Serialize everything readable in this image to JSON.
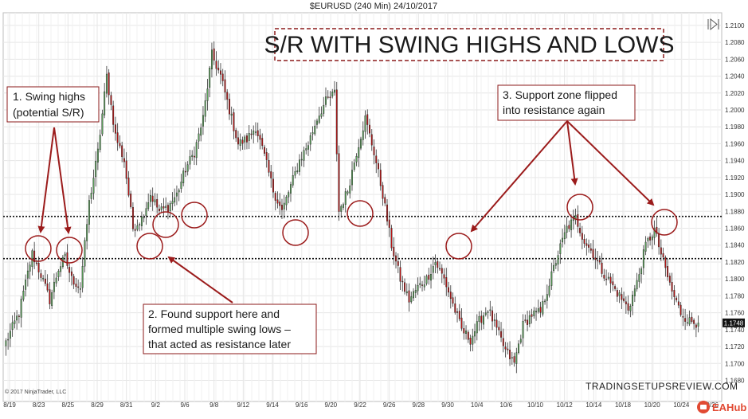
{
  "header": {
    "title": "$EURUSD (240 Min)  24/10/2017"
  },
  "banner": {
    "text": "S/R WITH SWING HIGHS AND LOWS"
  },
  "annotations": {
    "swing_highs_line1": "1. Swing highs",
    "swing_highs_line2": "(potential S/R)",
    "support_line1": "2. Found support here and",
    "support_line2": "formed multiple swing lows –",
    "support_line3": "that acted as resistance later",
    "flip_line1": "3. Support zone flipped",
    "flip_line2": "into resistance again"
  },
  "footer": {
    "copyright": "© 2017 NinjaTrader, LLC",
    "brand": "TRADINGSETUPSREVIEW.COM",
    "eahub": "EAHub"
  },
  "current_price": {
    "label": "1.1748",
    "value": 1.1748
  },
  "colors": {
    "bull": "#5aa05a",
    "bear": "#b81414",
    "wick": "#333333",
    "grid": "#e6e6e6",
    "annotation_border": "#8b1a1a",
    "arrow": "#9b1b1b",
    "level_line": "#111111"
  },
  "chart_data": {
    "type": "candlestick",
    "symbol": "$EURUSD",
    "timeframe": "240 Min",
    "ylim": [
      1.1655,
      1.2115
    ],
    "y_ticks": [
      "1.2100",
      "1.2080",
      "1.2060",
      "1.2040",
      "1.2020",
      "1.2000",
      "1.1980",
      "1.1960",
      "1.1940",
      "1.1920",
      "1.1900",
      "1.1880",
      "1.1860",
      "1.1840",
      "1.1820",
      "1.1800",
      "1.1780",
      "1.1760",
      "1.1740",
      "1.1720",
      "1.1700",
      "1.1680"
    ],
    "x_ticks": [
      "8/19",
      "8/23",
      "8/25",
      "8/29",
      "8/31",
      "9/2",
      "9/6",
      "9/8",
      "9/12",
      "9/14",
      "9/16",
      "9/20",
      "9/22",
      "9/26",
      "9/28",
      "9/30",
      "10/4",
      "10/6",
      "10/10",
      "10/12",
      "10/14",
      "10/18",
      "10/20",
      "10/24",
      "10/26"
    ],
    "grid": true,
    "horizontal_levels": [
      1.1874,
      1.1824
    ],
    "close_anchors": [
      [
        0,
        1.1725
      ],
      [
        6,
        1.176
      ],
      [
        12,
        1.183
      ],
      [
        16,
        1.1805
      ],
      [
        20,
        1.1775
      ],
      [
        24,
        1.1812
      ],
      [
        27,
        1.1825
      ],
      [
        30,
        1.18
      ],
      [
        34,
        1.179
      ],
      [
        38,
        1.189
      ],
      [
        42,
        1.195
      ],
      [
        46,
        1.204
      ],
      [
        50,
        1.197
      ],
      [
        54,
        1.194
      ],
      [
        58,
        1.186
      ],
      [
        62,
        1.1872
      ],
      [
        66,
        1.19
      ],
      [
        70,
        1.188
      ],
      [
        74,
        1.1885
      ],
      [
        78,
        1.19
      ],
      [
        82,
        1.193
      ],
      [
        86,
        1.195
      ],
      [
        90,
        1.199
      ],
      [
        94,
        1.2065
      ],
      [
        98,
        1.204
      ],
      [
        102,
        1.2
      ],
      [
        106,
        1.196
      ],
      [
        110,
        1.1965
      ],
      [
        114,
        1.198
      ],
      [
        118,
        1.1945
      ],
      [
        122,
        1.1905
      ],
      [
        126,
        1.188
      ],
      [
        130,
        1.191
      ],
      [
        134,
        1.194
      ],
      [
        138,
        1.196
      ],
      [
        142,
        1.199
      ],
      [
        146,
        1.201
      ],
      [
        150,
        1.202
      ],
      [
        152,
        1.188
      ],
      [
        156,
        1.1905
      ],
      [
        160,
        1.195
      ],
      [
        164,
        1.199
      ],
      [
        168,
        1.195
      ],
      [
        172,
        1.19
      ],
      [
        176,
        1.184
      ],
      [
        180,
        1.18
      ],
      [
        184,
        1.1775
      ],
      [
        188,
        1.179
      ],
      [
        192,
        1.18
      ],
      [
        196,
        1.182
      ],
      [
        200,
        1.18
      ],
      [
        204,
        1.177
      ],
      [
        208,
        1.174
      ],
      [
        212,
        1.1728
      ],
      [
        216,
        1.175
      ],
      [
        220,
        1.1765
      ],
      [
        224,
        1.174
      ],
      [
        228,
        1.1715
      ],
      [
        232,
        1.17
      ],
      [
        236,
        1.1745
      ],
      [
        240,
        1.1758
      ],
      [
        244,
        1.176
      ],
      [
        248,
        1.1795
      ],
      [
        252,
        1.183
      ],
      [
        256,
        1.186
      ],
      [
        260,
        1.1872
      ],
      [
        264,
        1.1845
      ],
      [
        268,
        1.183
      ],
      [
        272,
        1.181
      ],
      [
        276,
        1.1795
      ],
      [
        280,
        1.178
      ],
      [
        284,
        1.1765
      ],
      [
        288,
        1.1795
      ],
      [
        292,
        1.184
      ],
      [
        296,
        1.1858
      ],
      [
        300,
        1.182
      ],
      [
        304,
        1.1785
      ],
      [
        308,
        1.176
      ],
      [
        312,
        1.175
      ],
      [
        316,
        1.1748
      ]
    ]
  }
}
